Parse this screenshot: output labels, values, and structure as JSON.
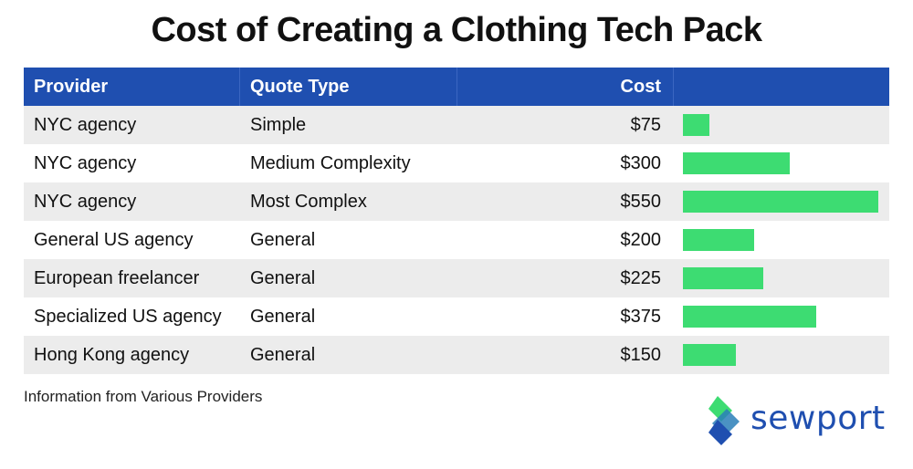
{
  "title": "Cost of Creating a Clothing Tech Pack",
  "table": {
    "headers": {
      "provider": "Provider",
      "quote_type": "Quote Type",
      "cost": "Cost"
    },
    "rows": [
      {
        "provider": "NYC agency",
        "quote_type": "Simple",
        "cost": "$75"
      },
      {
        "provider": "NYC agency",
        "quote_type": "Medium Complexity",
        "cost": "$300"
      },
      {
        "provider": "NYC agency",
        "quote_type": "Most Complex",
        "cost": "$550"
      },
      {
        "provider": "General US agency",
        "quote_type": "General",
        "cost": "$200"
      },
      {
        "provider": "European freelancer",
        "quote_type": "General",
        "cost": "$225"
      },
      {
        "provider": "Specialized US agency",
        "quote_type": "General",
        "cost": "$375"
      },
      {
        "provider": "Hong Kong agency",
        "quote_type": "General",
        "cost": "$150"
      }
    ]
  },
  "chart_data": {
    "type": "bar",
    "categories": [
      "NYC agency / Simple",
      "NYC agency / Medium Complexity",
      "NYC agency / Most Complex",
      "General US agency / General",
      "European freelancer / General",
      "Specialized US agency / General",
      "Hong Kong agency / General"
    ],
    "values": [
      75,
      300,
      550,
      200,
      225,
      375,
      150
    ],
    "title": "Cost of Creating a Clothing Tech Pack",
    "xlabel": "",
    "ylabel": "",
    "orientation": "horizontal",
    "grid": false
  },
  "footnote": "Information from Various Providers",
  "logo": {
    "text": "sewport",
    "icon": "sewport-logo-icon"
  },
  "colors": {
    "header_bg": "#1f4fb0",
    "bar": "#3ddc72",
    "row_alt": "#ececec",
    "brand": "#1f4fb0",
    "logo_green": "#3ddc72"
  }
}
